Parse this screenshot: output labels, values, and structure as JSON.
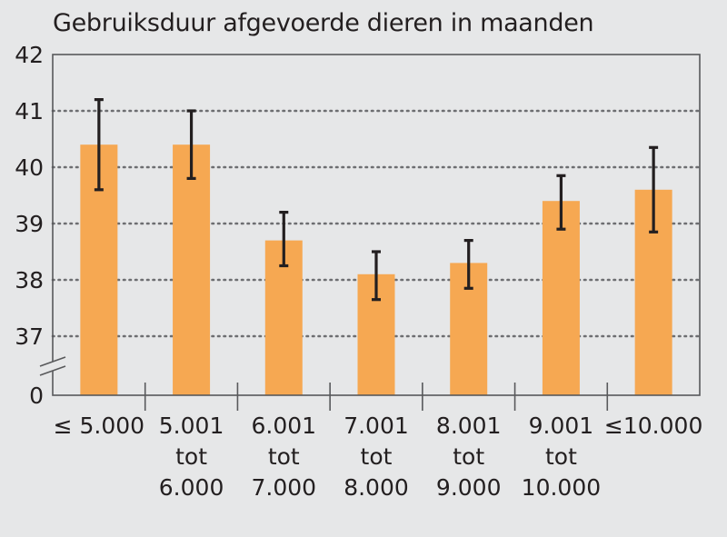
{
  "chart_data": {
    "type": "bar",
    "title": "Gebruiksduur afgevoerde dieren in maanden",
    "xlabel": "",
    "ylabel": "",
    "y_axis_break": true,
    "y_tick_labels": [
      "0",
      "37",
      "38",
      "39",
      "40",
      "41",
      "42"
    ],
    "ylim": [
      37,
      42
    ],
    "grid": "horizontal-dotted",
    "legend": "none",
    "categories": [
      [
        "≤ 5.000"
      ],
      [
        "5.001",
        "tot",
        "6.000"
      ],
      [
        "6.001",
        "tot",
        "7.000"
      ],
      [
        "7.001",
        "tot",
        "8.000"
      ],
      [
        "8.001",
        "tot",
        "9.000"
      ],
      [
        "9.001",
        "tot",
        "10.000"
      ],
      [
        "≤10.000"
      ]
    ],
    "values": [
      40.4,
      40.4,
      38.7,
      38.1,
      38.3,
      39.4,
      39.6
    ],
    "error_low": [
      39.6,
      39.8,
      38.25,
      37.65,
      37.85,
      38.9,
      38.85
    ],
    "error_high": [
      41.2,
      41.0,
      39.2,
      38.5,
      38.7,
      39.85,
      40.35
    ],
    "colors": {
      "bar": "#f6a852",
      "error_bar": "#231f20",
      "grid": "#6d6e71",
      "background": "#e6e7e8"
    }
  }
}
